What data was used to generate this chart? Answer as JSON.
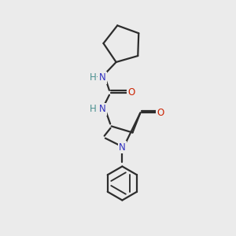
{
  "bg_color": "#ebebeb",
  "bond_color": "#2d2d2d",
  "N_color": "#4a9090",
  "N2_color": "#3030c0",
  "O_color": "#cc2200",
  "line_width": 1.6,
  "figsize": [
    3.0,
    3.0
  ],
  "dpi": 100,
  "xlim": [
    0,
    10
  ],
  "ylim": [
    0,
    10
  ]
}
